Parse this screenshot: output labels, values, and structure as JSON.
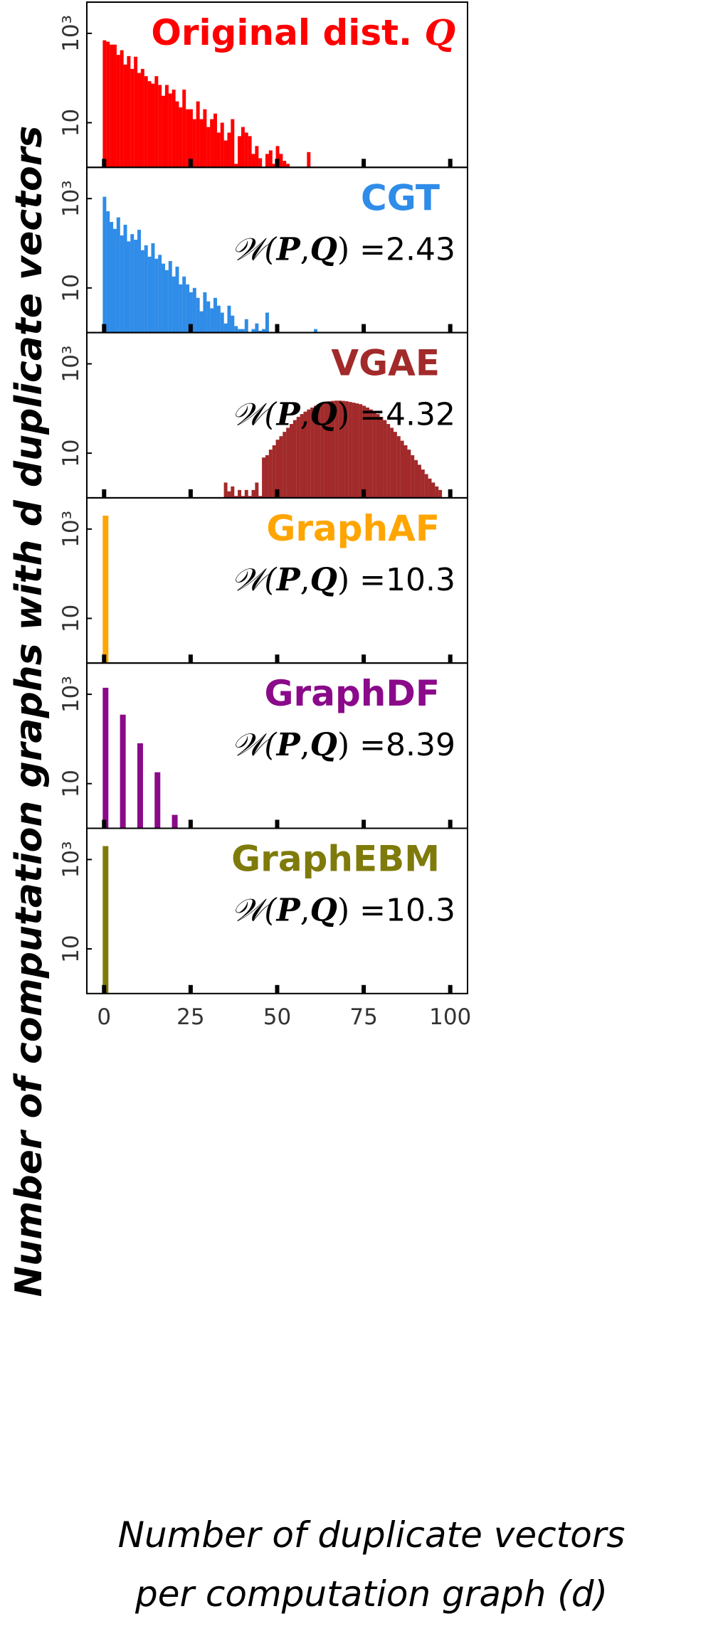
{
  "chart_data": {
    "type": "bar",
    "ylabel": "Number of computation graphs with d duplicate vectors",
    "xlabel_line1": "Number of duplicate vectors",
    "xlabel_line2": "per computation graph (d)",
    "xlim": [
      -5,
      105
    ],
    "xticks": [
      0,
      25,
      50,
      75,
      100
    ],
    "xtick_labels": [
      "0",
      "25",
      "50",
      "75",
      "100"
    ],
    "yscale": "log",
    "ylim": [
      1,
      5000
    ],
    "yticks": [
      10,
      1000
    ],
    "ytick_labels": [
      "10",
      "10³"
    ],
    "metric_symbol": "𝒲",
    "panels": [
      {
        "name": "Original dist. Q",
        "metric": "",
        "color": "#ff0000",
        "bins": [
          [
            0,
            700
          ],
          [
            1,
            650
          ],
          [
            2,
            560
          ],
          [
            3,
            560
          ],
          [
            4,
            330
          ],
          [
            5,
            420
          ],
          [
            6,
            200
          ],
          [
            7,
            310
          ],
          [
            8,
            160
          ],
          [
            9,
            300
          ],
          [
            10,
            130
          ],
          [
            11,
            160
          ],
          [
            12,
            110
          ],
          [
            13,
            85
          ],
          [
            14,
            75
          ],
          [
            15,
            110
          ],
          [
            16,
            70
          ],
          [
            17,
            40
          ],
          [
            18,
            70
          ],
          [
            19,
            45
          ],
          [
            20,
            55
          ],
          [
            21,
            30
          ],
          [
            22,
            22
          ],
          [
            23,
            55
          ],
          [
            24,
            20
          ],
          [
            25,
            20
          ],
          [
            26,
            12
          ],
          [
            27,
            30
          ],
          [
            28,
            12
          ],
          [
            29,
            20
          ],
          [
            30,
            8
          ],
          [
            31,
            12
          ],
          [
            32,
            16
          ],
          [
            33,
            6
          ],
          [
            34,
            10
          ],
          [
            35,
            4
          ],
          [
            36,
            6
          ],
          [
            37,
            12
          ],
          [
            38,
            1.2
          ],
          [
            39,
            5
          ],
          [
            40,
            8
          ],
          [
            41,
            6
          ],
          [
            42,
            5
          ],
          [
            43,
            2
          ],
          [
            44,
            3
          ],
          [
            45,
            1.6
          ],
          [
            46,
            1
          ],
          [
            47,
            2
          ],
          [
            48,
            2.4
          ],
          [
            49,
            1.2
          ],
          [
            50,
            3
          ],
          [
            51,
            2
          ],
          [
            52,
            1.4
          ],
          [
            53,
            1.2
          ],
          [
            59,
            2.2
          ]
        ]
      },
      {
        "name": "CGT",
        "metric": "=2.43",
        "color": "#2f8ce8",
        "bins": [
          [
            0,
            1100
          ],
          [
            1,
            520
          ],
          [
            2,
            300
          ],
          [
            3,
            210
          ],
          [
            4,
            380
          ],
          [
            5,
            150
          ],
          [
            6,
            260
          ],
          [
            7,
            110
          ],
          [
            8,
            160
          ],
          [
            9,
            120
          ],
          [
            10,
            200
          ],
          [
            11,
            70
          ],
          [
            12,
            90
          ],
          [
            13,
            50
          ],
          [
            14,
            100
          ],
          [
            15,
            45
          ],
          [
            16,
            55
          ],
          [
            17,
            35
          ],
          [
            18,
            25
          ],
          [
            19,
            40
          ],
          [
            20,
            18
          ],
          [
            21,
            30
          ],
          [
            22,
            12
          ],
          [
            23,
            18
          ],
          [
            24,
            12
          ],
          [
            25,
            8
          ],
          [
            26,
            10
          ],
          [
            27,
            6
          ],
          [
            28,
            3
          ],
          [
            29,
            8
          ],
          [
            30,
            5
          ],
          [
            31,
            3.5
          ],
          [
            32,
            6
          ],
          [
            33,
            4
          ],
          [
            34,
            2.8
          ],
          [
            35,
            1.6
          ],
          [
            36,
            4
          ],
          [
            37,
            2.4
          ],
          [
            38,
            1.4
          ],
          [
            39,
            1.2
          ],
          [
            40,
            1.2
          ],
          [
            41,
            2
          ],
          [
            43,
            1.2
          ],
          [
            44,
            1.6
          ],
          [
            45,
            1.1
          ],
          [
            46,
            1.2
          ],
          [
            47,
            2.8
          ],
          [
            61,
            1.2
          ]
        ]
      },
      {
        "name": "VGAE",
        "metric": "=4.32",
        "color": "#a22a2a",
        "bins": [
          [
            35,
            2.2
          ],
          [
            36,
            1.4
          ],
          [
            37,
            1.8
          ],
          [
            38,
            1.1
          ],
          [
            39,
            1.5
          ],
          [
            40,
            1.1
          ],
          [
            41,
            1.5
          ],
          [
            42,
            1.1
          ],
          [
            43,
            1.5
          ],
          [
            44,
            2.2
          ],
          [
            45,
            1.1
          ],
          [
            46,
            8
          ],
          [
            47,
            9
          ],
          [
            48,
            12
          ],
          [
            49,
            15
          ],
          [
            50,
            20
          ],
          [
            51,
            24
          ],
          [
            52,
            30
          ],
          [
            53,
            37
          ],
          [
            54,
            45
          ],
          [
            55,
            55
          ],
          [
            56,
            65
          ],
          [
            57,
            75
          ],
          [
            58,
            85
          ],
          [
            59,
            95
          ],
          [
            60,
            105
          ],
          [
            61,
            115
          ],
          [
            62,
            125
          ],
          [
            63,
            135
          ],
          [
            64,
            140
          ],
          [
            65,
            145
          ],
          [
            66,
            148
          ],
          [
            67,
            150
          ],
          [
            68,
            150
          ],
          [
            69,
            148
          ],
          [
            70,
            145
          ],
          [
            71,
            140
          ],
          [
            72,
            135
          ],
          [
            73,
            130
          ],
          [
            74,
            125
          ],
          [
            75,
            115
          ],
          [
            76,
            105
          ],
          [
            77,
            95
          ],
          [
            78,
            85
          ],
          [
            79,
            75
          ],
          [
            80,
            65
          ],
          [
            81,
            55
          ],
          [
            82,
            45
          ],
          [
            83,
            37
          ],
          [
            84,
            30
          ],
          [
            85,
            24
          ],
          [
            86,
            19
          ],
          [
            87,
            15
          ],
          [
            88,
            12
          ],
          [
            89,
            9
          ],
          [
            90,
            7
          ],
          [
            91,
            5.5
          ],
          [
            92,
            4.3
          ],
          [
            93,
            3.4
          ],
          [
            94,
            2.7
          ],
          [
            95,
            2.2
          ],
          [
            96,
            1.8
          ],
          [
            97,
            1.5
          ]
        ]
      },
      {
        "name": "GraphAF",
        "metric": "=10.3",
        "color": "#ffa500",
        "bins": [
          [
            0,
            2000
          ]
        ]
      },
      {
        "name": "GraphDF",
        "metric": "=8.39",
        "color": "#8a0a8a",
        "bins": [
          [
            0,
            1400
          ],
          [
            5,
            350
          ],
          [
            10,
            80
          ],
          [
            15,
            18
          ],
          [
            20,
            2
          ]
        ]
      },
      {
        "name": "GraphEBM",
        "metric": "=10.3",
        "color": "#7f7b0a",
        "bins": [
          [
            0,
            2000
          ]
        ]
      }
    ]
  },
  "colors": {
    "Q": "#ff0000",
    "frame": "#000000"
  }
}
